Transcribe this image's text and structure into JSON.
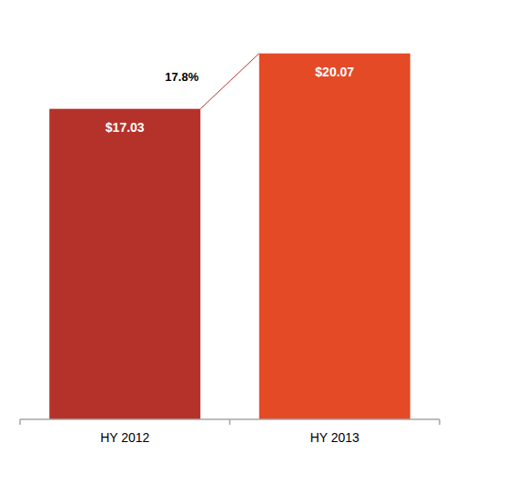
{
  "chart_data": {
    "type": "bar",
    "categories": [
      "HY 2012",
      "HY 2013"
    ],
    "values": [
      17.03,
      20.07
    ],
    "value_labels": [
      "$17.03",
      "$20.07"
    ],
    "colors": [
      "#b5322b",
      "#e54a27"
    ],
    "data_labels": true,
    "tick_labels": "x",
    "ylim": [
      0,
      23
    ],
    "annotations": [
      "17.8%"
    ]
  }
}
